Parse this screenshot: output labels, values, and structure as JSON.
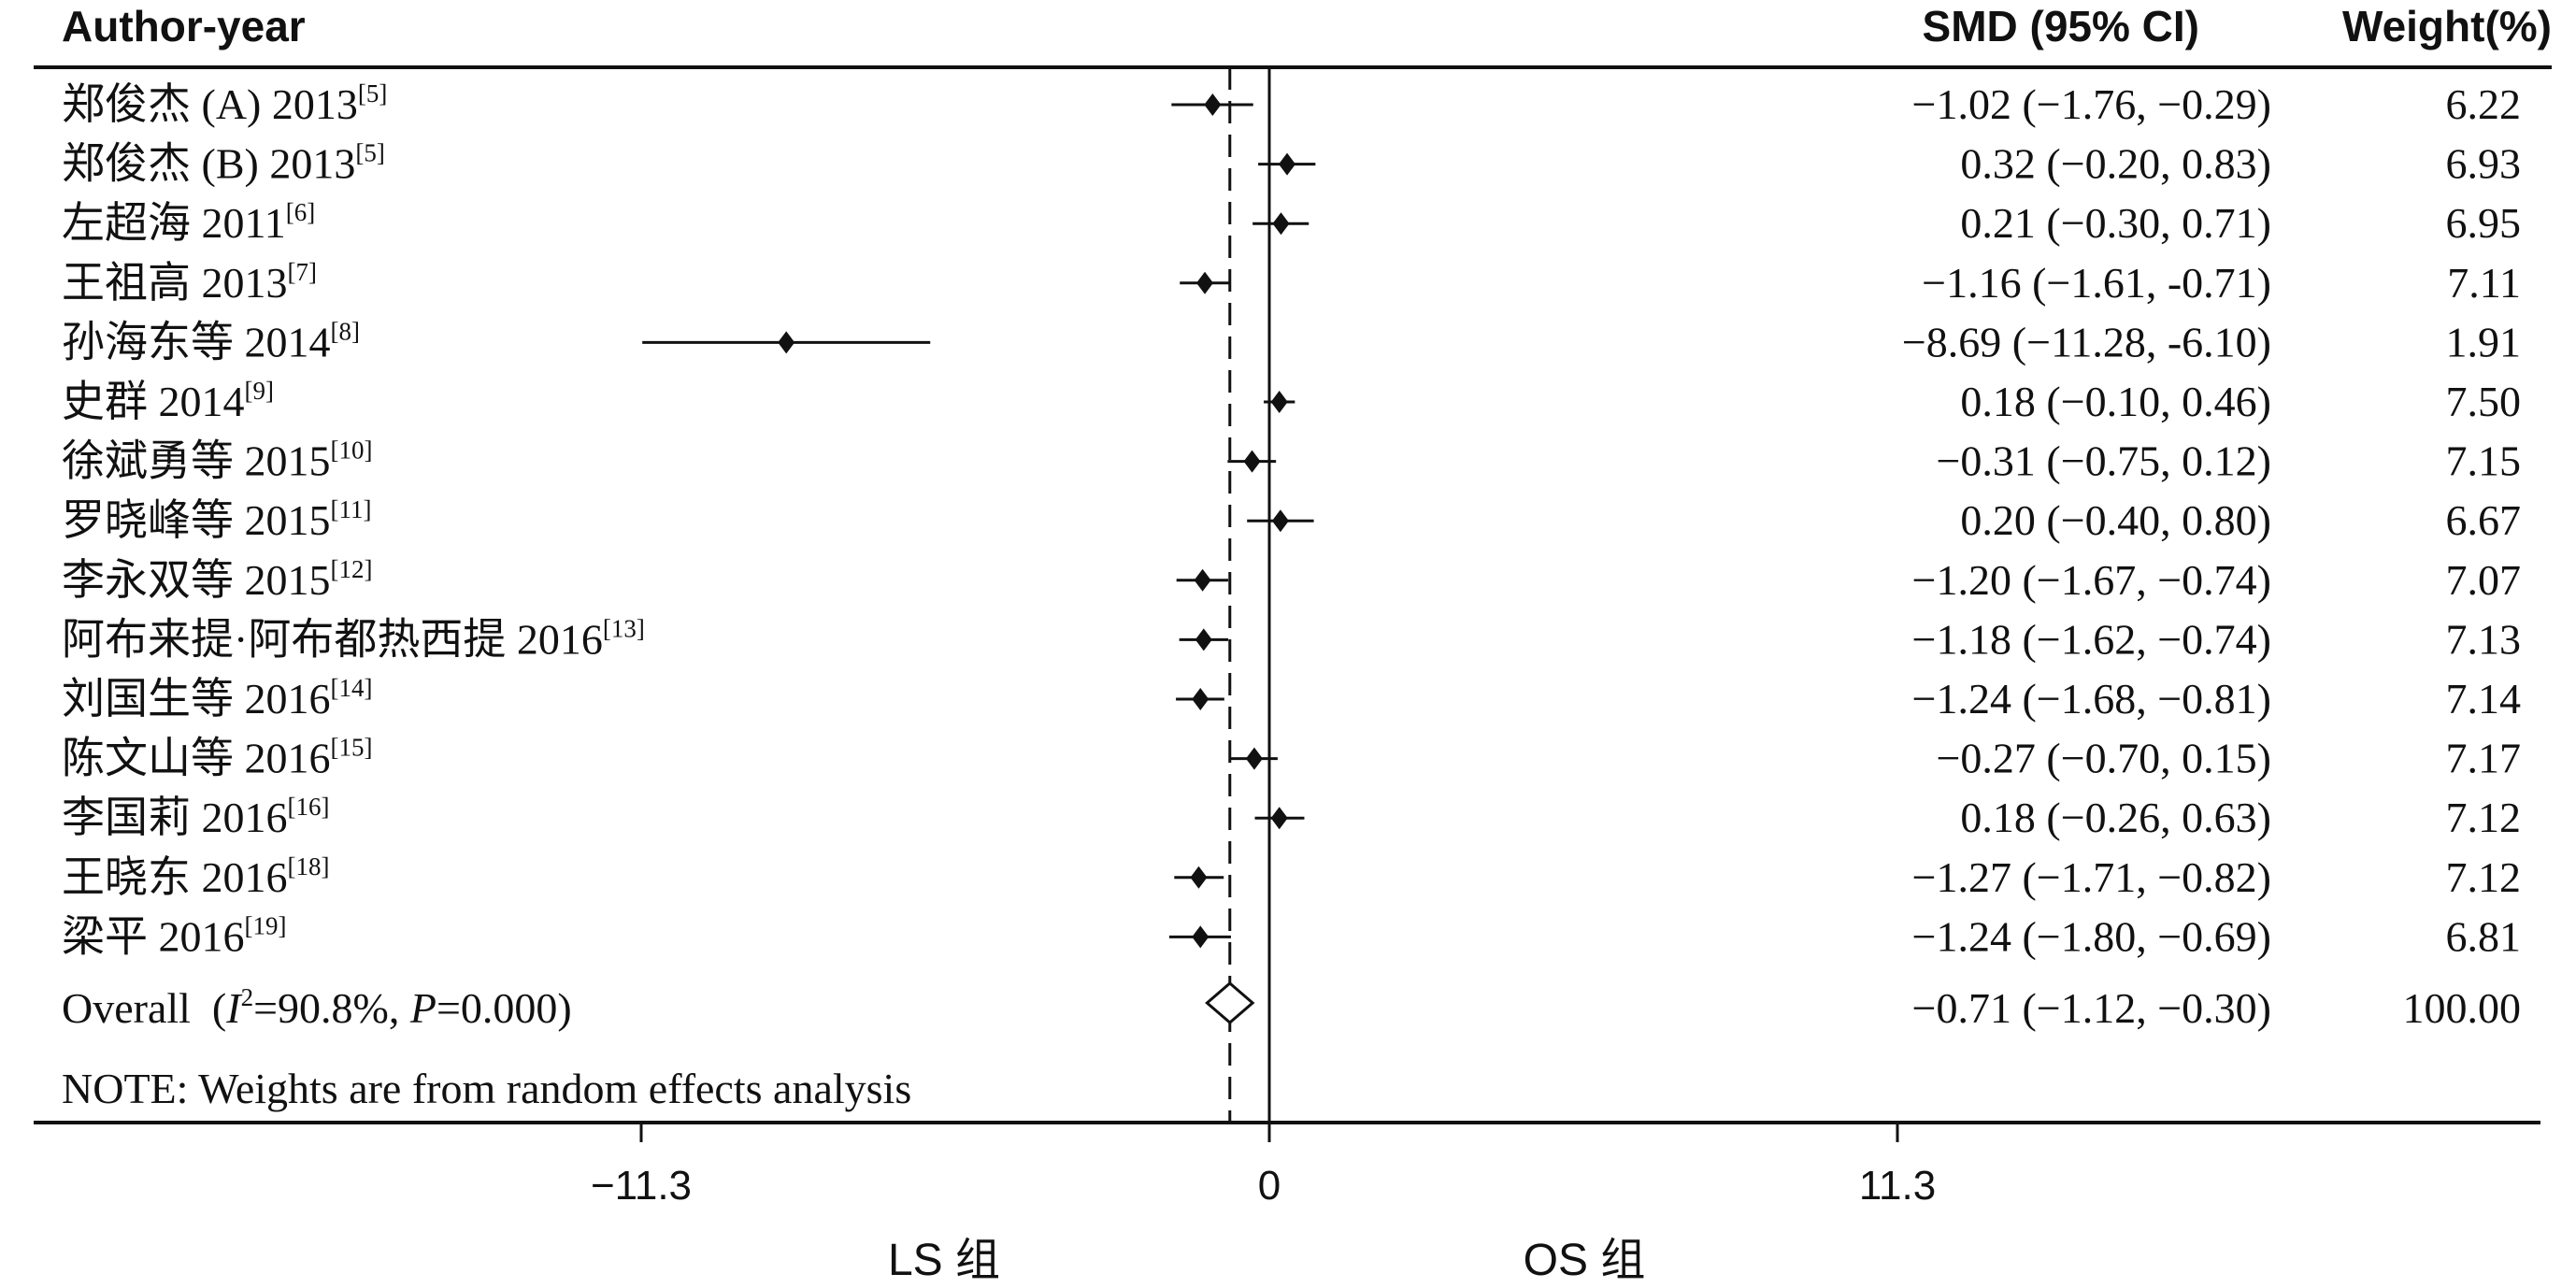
{
  "header": {
    "author_col": "Author-year",
    "smd_col": "SMD (95% CI)",
    "weight_col": "Weight(%)"
  },
  "chart_data": {
    "type": "forest",
    "xlim": [
      -11.3,
      11.3
    ],
    "null_line": 0,
    "xticks": [
      "−11.3",
      "0",
      "11.3"
    ],
    "side_labels": {
      "left": "LS 组",
      "right": "OS 组"
    },
    "studies": [
      {
        "name": "郑俊杰 (A) 2013",
        "ref": "[5]",
        "smd": -1.02,
        "lo": -1.76,
        "hi": -0.29,
        "smd_text": "−1.02 (−1.76, −0.29)",
        "weight": "6.22"
      },
      {
        "name": "郑俊杰 (B) 2013",
        "ref": "[5]",
        "smd": 0.32,
        "lo": -0.2,
        "hi": 0.83,
        "smd_text": "0.32 (−0.20, 0.83)",
        "weight": "6.93"
      },
      {
        "name": "左超海 2011",
        "ref": "[6]",
        "smd": 0.21,
        "lo": -0.3,
        "hi": 0.71,
        "smd_text": "0.21 (−0.30, 0.71)",
        "weight": "6.95"
      },
      {
        "name": "王祖高 2013",
        "ref": "[7]",
        "smd": -1.16,
        "lo": -1.61,
        "hi": -0.71,
        "smd_text": "−1.16 (−1.61, -0.71)",
        "weight": "7.11"
      },
      {
        "name": "孙海东等 2014",
        "ref": "[8]",
        "smd": -8.69,
        "lo": -11.28,
        "hi": -6.1,
        "smd_text": "−8.69 (−11.28, -6.10)",
        "weight": "1.91"
      },
      {
        "name": "史群 2014",
        "ref": "[9]",
        "smd": 0.18,
        "lo": -0.1,
        "hi": 0.46,
        "smd_text": "0.18 (−0.10, 0.46)",
        "weight": "7.50"
      },
      {
        "name": "徐斌勇等 2015",
        "ref": "[10]",
        "smd": -0.31,
        "lo": -0.75,
        "hi": 0.12,
        "smd_text": "−0.31 (−0.75, 0.12)",
        "weight": "7.15"
      },
      {
        "name": "罗晓峰等 2015",
        "ref": "[11]",
        "smd": 0.2,
        "lo": -0.4,
        "hi": 0.8,
        "smd_text": "0.20 (−0.40, 0.80)",
        "weight": "6.67"
      },
      {
        "name": "李永双等 2015",
        "ref": "[12]",
        "smd": -1.2,
        "lo": -1.67,
        "hi": -0.74,
        "smd_text": "−1.20 (−1.67, −0.74)",
        "weight": "7.07"
      },
      {
        "name": "阿布来提·阿布都热西提 2016",
        "ref": "[13]",
        "smd": -1.18,
        "lo": -1.62,
        "hi": -0.74,
        "smd_text": "−1.18 (−1.62, −0.74)",
        "weight": "7.13"
      },
      {
        "name": "刘国生等 2016",
        "ref": "[14]",
        "smd": -1.24,
        "lo": -1.68,
        "hi": -0.81,
        "smd_text": "−1.24 (−1.68, −0.81)",
        "weight": "7.14"
      },
      {
        "name": "陈文山等 2016",
        "ref": "[15]",
        "smd": -0.27,
        "lo": -0.7,
        "hi": 0.15,
        "smd_text": "−0.27 (−0.70, 0.15)",
        "weight": "7.17"
      },
      {
        "name": "李国莉 2016",
        "ref": "[16]",
        "smd": 0.18,
        "lo": -0.26,
        "hi": 0.63,
        "smd_text": "0.18 (−0.26, 0.63)",
        "weight": "7.12"
      },
      {
        "name": "王晓东 2016",
        "ref": "[18]",
        "smd": -1.27,
        "lo": -1.71,
        "hi": -0.82,
        "smd_text": "−1.27 (−1.71, −0.82)",
        "weight": "7.12"
      },
      {
        "name": "梁平 2016",
        "ref": "[19]",
        "smd": -1.24,
        "lo": -1.8,
        "hi": -0.69,
        "smd_text": "−1.24 (−1.80, −0.69)",
        "weight": "6.81"
      }
    ],
    "overall": {
      "label_prefix": "Overall  (",
      "i_letter": "I",
      "i_sup": "2",
      "label_mid": "=90.8%, ",
      "p_letter": "P",
      "label_suffix": "=0.000)",
      "smd": -0.71,
      "lo": -1.12,
      "hi": -0.3,
      "smd_text": "−0.71 (−1.12, −0.30)",
      "weight": "100.00"
    },
    "note": "NOTE: Weights are from random effects analysis"
  }
}
